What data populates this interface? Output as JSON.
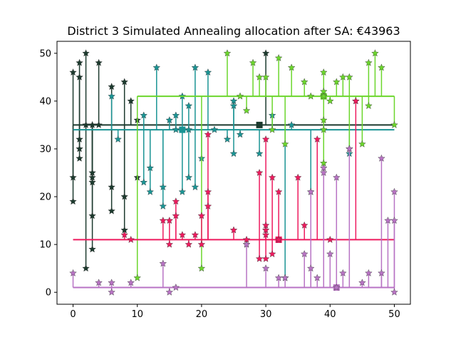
{
  "chart_data": {
    "type": "scatter",
    "title": "District 3 Simulated Annealing allocation after SA: €43963",
    "xlabel": "",
    "ylabel": "",
    "xlim": [
      -2.5,
      52.5
    ],
    "ylim": [
      -2.5,
      52.5
    ],
    "xticks": [
      0,
      10,
      20,
      30,
      40,
      50
    ],
    "yticks": [
      0,
      10,
      20,
      30,
      40,
      50
    ],
    "grid": false,
    "marker": "star",
    "series": [
      {
        "color": "#1c3a2e",
        "hub": [
          29,
          35
        ],
        "trunk": [
          0,
          50
        ],
        "points": [
          [
            0,
            46
          ],
          [
            0,
            24
          ],
          [
            0,
            19
          ],
          [
            1,
            48
          ],
          [
            1,
            45
          ],
          [
            1,
            32
          ],
          [
            1,
            30
          ],
          [
            1,
            28
          ],
          [
            2,
            50
          ],
          [
            2,
            35
          ],
          [
            2,
            5
          ],
          [
            3,
            35
          ],
          [
            3,
            25
          ],
          [
            3,
            24
          ],
          [
            3,
            23
          ],
          [
            3,
            16
          ],
          [
            3,
            9
          ],
          [
            4,
            48
          ],
          [
            4,
            35
          ],
          [
            6,
            43
          ],
          [
            6,
            22
          ],
          [
            6,
            17
          ],
          [
            8,
            44
          ],
          [
            8,
            20
          ],
          [
            8,
            13
          ],
          [
            9,
            40
          ],
          [
            10,
            36
          ],
          [
            10,
            24
          ],
          [
            30,
            50
          ]
        ]
      },
      {
        "color": "#1a9494",
        "hub": [
          17,
          34
        ],
        "trunk": [
          0,
          50
        ],
        "points": [
          [
            6,
            41
          ],
          [
            7,
            32
          ],
          [
            11,
            37
          ],
          [
            11,
            23
          ],
          [
            12,
            26
          ],
          [
            12,
            21
          ],
          [
            13,
            47
          ],
          [
            14,
            22
          ],
          [
            14,
            18
          ],
          [
            15,
            36
          ],
          [
            16,
            37
          ],
          [
            16,
            34
          ],
          [
            17,
            41
          ],
          [
            17,
            21
          ],
          [
            18,
            39
          ],
          [
            18,
            34
          ],
          [
            18,
            24
          ],
          [
            19,
            47
          ],
          [
            19,
            22
          ],
          [
            20,
            28
          ],
          [
            21,
            46
          ],
          [
            22,
            34
          ],
          [
            24,
            32
          ],
          [
            25,
            40
          ],
          [
            25,
            39
          ],
          [
            25,
            29
          ],
          [
            26,
            33
          ],
          [
            29,
            29
          ],
          [
            31,
            37
          ],
          [
            33,
            3
          ],
          [
            34,
            35
          ],
          [
            43,
            29
          ],
          [
            37,
            21
          ]
        ]
      },
      {
        "color": "#6bd62c",
        "hub": [
          39,
          41
        ],
        "trunk": [
          10,
          50
        ],
        "points": [
          [
            10,
            3
          ],
          [
            20,
            5
          ],
          [
            24,
            50
          ],
          [
            26,
            41
          ],
          [
            27,
            38
          ],
          [
            28,
            48
          ],
          [
            29,
            45
          ],
          [
            30,
            45
          ],
          [
            31,
            34
          ],
          [
            32,
            49
          ],
          [
            33,
            31
          ],
          [
            34,
            47
          ],
          [
            36,
            44
          ],
          [
            37,
            41
          ],
          [
            39,
            46
          ],
          [
            39,
            42
          ],
          [
            39,
            41
          ],
          [
            39,
            36
          ],
          [
            39,
            34
          ],
          [
            39,
            27
          ],
          [
            40,
            40
          ],
          [
            41,
            44
          ],
          [
            42,
            45
          ],
          [
            43,
            45
          ],
          [
            43,
            30
          ],
          [
            44,
            40
          ],
          [
            45,
            31
          ],
          [
            46,
            48
          ],
          [
            46,
            39
          ],
          [
            47,
            50
          ],
          [
            48,
            47
          ],
          [
            50,
            35
          ]
        ]
      },
      {
        "color": "#ee1a5e",
        "hub": [
          32,
          11
        ],
        "trunk": [
          0,
          50
        ],
        "points": [
          [
            8,
            12
          ],
          [
            9,
            11
          ],
          [
            14,
            15
          ],
          [
            15,
            15
          ],
          [
            15,
            10
          ],
          [
            16,
            19
          ],
          [
            16,
            16
          ],
          [
            17,
            12
          ],
          [
            18,
            10
          ],
          [
            19,
            12
          ],
          [
            20,
            16
          ],
          [
            20,
            10
          ],
          [
            21,
            21
          ],
          [
            21,
            18
          ],
          [
            21,
            33
          ],
          [
            25,
            13
          ],
          [
            27,
            10
          ],
          [
            27,
            11
          ],
          [
            29,
            25
          ],
          [
            29,
            7
          ],
          [
            30,
            32
          ],
          [
            30,
            14
          ],
          [
            30,
            13
          ],
          [
            30,
            12
          ],
          [
            30,
            7
          ],
          [
            31,
            24
          ],
          [
            31,
            8
          ],
          [
            32,
            21
          ],
          [
            32,
            11
          ],
          [
            35,
            24
          ],
          [
            36,
            14
          ],
          [
            38,
            32
          ],
          [
            40,
            11
          ],
          [
            44,
            40
          ]
        ]
      },
      {
        "color": "#b873c4",
        "hub": [
          41,
          1
        ],
        "trunk": [
          0,
          50
        ],
        "points": [
          [
            0,
            4
          ],
          [
            4,
            2
          ],
          [
            6,
            2
          ],
          [
            6,
            0
          ],
          [
            9,
            2
          ],
          [
            14,
            6
          ],
          [
            15,
            0
          ],
          [
            16,
            1
          ],
          [
            27,
            10
          ],
          [
            30,
            5
          ],
          [
            32,
            3
          ],
          [
            33,
            3
          ],
          [
            36,
            8
          ],
          [
            37,
            21
          ],
          [
            37,
            5
          ],
          [
            38,
            3
          ],
          [
            39,
            25
          ],
          [
            39,
            26
          ],
          [
            40,
            8
          ],
          [
            41,
            1
          ],
          [
            41,
            24
          ],
          [
            42,
            4
          ],
          [
            43,
            30
          ],
          [
            45,
            2
          ],
          [
            46,
            4
          ],
          [
            48,
            28
          ],
          [
            48,
            4
          ],
          [
            49,
            15
          ],
          [
            50,
            21
          ],
          [
            50,
            15
          ],
          [
            50,
            0
          ]
        ]
      }
    ]
  }
}
